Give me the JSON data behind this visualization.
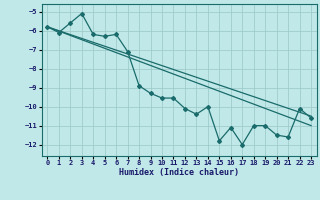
{
  "title": "",
  "xlabel": "Humidex (Indice chaleur)",
  "ylabel": "",
  "bg_color": "#c0e8e8",
  "grid_color": "#a0cccc",
  "line_color": "#1a6b6b",
  "text_color": "#1a1a6b",
  "xlim": [
    -0.5,
    23.5
  ],
  "ylim": [
    -12.6,
    -4.6
  ],
  "yticks": [
    -12,
    -11,
    -10,
    -9,
    -8,
    -7,
    -6,
    -5
  ],
  "xticks": [
    0,
    1,
    2,
    3,
    4,
    5,
    6,
    7,
    8,
    9,
    10,
    11,
    12,
    13,
    14,
    15,
    16,
    17,
    18,
    19,
    20,
    21,
    22,
    23
  ],
  "line1_x": [
    0,
    1,
    2,
    3,
    4,
    5,
    6,
    7,
    8,
    9,
    10,
    11,
    12,
    13,
    14,
    15,
    16,
    17,
    18,
    19,
    20,
    21,
    22,
    23
  ],
  "line1_y": [
    -5.8,
    -6.1,
    -5.6,
    -5.1,
    -6.2,
    -6.3,
    -6.2,
    -7.1,
    -8.9,
    -9.3,
    -9.55,
    -9.55,
    -10.1,
    -10.4,
    -10.0,
    -11.8,
    -11.1,
    -12.0,
    -11.0,
    -11.0,
    -11.5,
    -11.6,
    -10.1,
    -10.6
  ],
  "line2_x": [
    0,
    23
  ],
  "line2_y": [
    -5.8,
    -10.5
  ],
  "line3_x": [
    0,
    23
  ],
  "line3_y": [
    -5.8,
    -11.0
  ]
}
